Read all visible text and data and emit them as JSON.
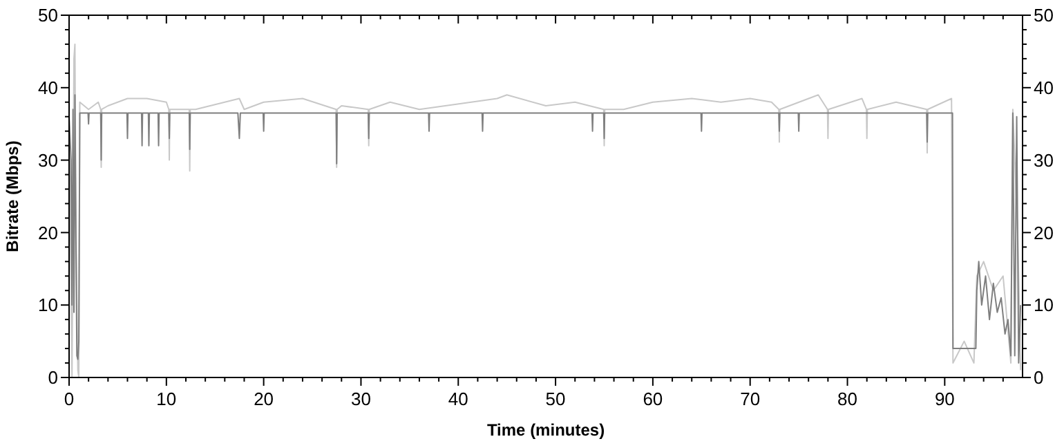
{
  "chart_data": {
    "type": "line",
    "xlabel": "Time (minutes)",
    "ylabel": "Bitrate (Mbps)",
    "xlim": [
      0,
      98
    ],
    "ylim": [
      0,
      50
    ],
    "y2lim": [
      0,
      50
    ],
    "xticks": [
      0,
      {
        "value": 2,
        "label": null
      },
      {
        "value": 4,
        "label": null
      },
      {
        "value": 6,
        "label": null
      },
      {
        "value": 8,
        "label": null
      },
      10,
      {
        "value": 12,
        "label": null
      },
      {
        "value": 14,
        "label": null
      },
      {
        "value": 16,
        "label": null
      },
      {
        "value": 18,
        "label": null
      },
      20,
      {
        "value": 22,
        "label": null
      },
      {
        "value": 24,
        "label": null
      },
      {
        "value": 26,
        "label": null
      },
      {
        "value": 28,
        "label": null
      },
      30,
      {
        "value": 32,
        "label": null
      },
      {
        "value": 34,
        "label": null
      },
      {
        "value": 36,
        "label": null
      },
      {
        "value": 38,
        "label": null
      },
      40,
      {
        "value": 42,
        "label": null
      },
      {
        "value": 44,
        "label": null
      },
      {
        "value": 46,
        "label": null
      },
      {
        "value": 48,
        "label": null
      },
      50,
      {
        "value": 52,
        "label": null
      },
      {
        "value": 54,
        "label": null
      },
      {
        "value": 56,
        "label": null
      },
      {
        "value": 58,
        "label": null
      },
      60,
      {
        "value": 62,
        "label": null
      },
      {
        "value": 64,
        "label": null
      },
      {
        "value": 66,
        "label": null
      },
      {
        "value": 68,
        "label": null
      },
      70,
      {
        "value": 72,
        "label": null
      },
      {
        "value": 74,
        "label": null
      },
      {
        "value": 76,
        "label": null
      },
      {
        "value": 78,
        "label": null
      },
      80,
      {
        "value": 82,
        "label": null
      },
      {
        "value": 84,
        "label": null
      },
      {
        "value": 86,
        "label": null
      },
      {
        "value": 88,
        "label": null
      },
      90,
      {
        "value": 92,
        "label": null
      },
      {
        "value": 94,
        "label": null
      },
      {
        "value": 96,
        "label": null
      }
    ],
    "yticks": [
      0,
      {
        "value": 2,
        "label": null
      },
      {
        "value": 4,
        "label": null
      },
      {
        "value": 6,
        "label": null
      },
      {
        "value": 8,
        "label": null
      },
      10,
      {
        "value": 12,
        "label": null
      },
      {
        "value": 14,
        "label": null
      },
      {
        "value": 16,
        "label": null
      },
      {
        "value": 18,
        "label": null
      },
      20,
      {
        "value": 22,
        "label": null
      },
      {
        "value": 24,
        "label": null
      },
      {
        "value": 26,
        "label": null
      },
      {
        "value": 28,
        "label": null
      },
      30,
      {
        "value": 32,
        "label": null
      },
      {
        "value": 34,
        "label": null
      },
      {
        "value": 36,
        "label": null
      },
      {
        "value": 38,
        "label": null
      },
      40,
      {
        "value": 42,
        "label": null
      },
      {
        "value": 44,
        "label": null
      },
      {
        "value": 46,
        "label": null
      },
      {
        "value": 48,
        "label": null
      },
      50
    ],
    "y2ticks": [
      0,
      {
        "value": 2,
        "label": null
      },
      {
        "value": 4,
        "label": null
      },
      {
        "value": 6,
        "label": null
      },
      {
        "value": 8,
        "label": null
      },
      10,
      {
        "value": 12,
        "label": null
      },
      {
        "value": 14,
        "label": null
      },
      {
        "value": 16,
        "label": null
      },
      {
        "value": 18,
        "label": null
      },
      20,
      {
        "value": 22,
        "label": null
      },
      {
        "value": 24,
        "label": null
      },
      {
        "value": 26,
        "label": null
      },
      {
        "value": 28,
        "label": null
      },
      30,
      {
        "value": 32,
        "label": null
      },
      {
        "value": 34,
        "label": null
      },
      {
        "value": 36,
        "label": null
      },
      {
        "value": 38,
        "label": null
      },
      40,
      {
        "value": 42,
        "label": null
      },
      {
        "value": 44,
        "label": null
      },
      {
        "value": 46,
        "label": null
      },
      {
        "value": 48,
        "label": null
      },
      50
    ],
    "grid": false,
    "series": [
      {
        "color": "#c8c8c8",
        "x": [
          0,
          0.3,
          0.5,
          0.6,
          0.7,
          0.9,
          1.0,
          1.1,
          2,
          3,
          3.25,
          3.3,
          3.35,
          4,
          6,
          8,
          10,
          10.25,
          10.3,
          10.35,
          12,
          12.35,
          12.4,
          12.45,
          13,
          17.5,
          18,
          20,
          24,
          27.45,
          27.5,
          27.55,
          28,
          30.75,
          30.8,
          30.85,
          33,
          36,
          44,
          45,
          49,
          52,
          54.95,
          55,
          55.05,
          57,
          60,
          64,
          67,
          70,
          72.2,
          72.95,
          73,
          73.05,
          77,
          77.95,
          78,
          78.05,
          81.5,
          81.95,
          82,
          82.05,
          85,
          88.15,
          88.2,
          88.25,
          90.7,
          90.85,
          92,
          93,
          93.3,
          94,
          95,
          96,
          96.8,
          97,
          97.5,
          97.8
        ],
        "values": [
          36,
          0,
          44,
          46,
          20,
          1,
          0,
          38,
          37,
          38,
          37,
          29,
          37,
          37.5,
          38.5,
          38.5,
          38,
          37,
          30,
          37,
          37,
          37,
          28.5,
          37,
          37,
          38.5,
          37,
          38,
          38.5,
          37,
          29,
          37,
          37.5,
          37,
          32,
          37,
          38,
          37,
          38.5,
          39,
          37.5,
          38,
          37,
          32,
          37,
          37,
          38,
          38.5,
          38,
          38.5,
          38,
          37,
          32.5,
          37,
          39,
          37,
          33,
          37,
          38.5,
          37,
          33,
          37,
          38,
          37,
          31,
          37,
          38.5,
          2,
          5,
          2,
          14,
          16,
          12,
          14,
          2,
          37,
          20,
          1
        ]
      },
      {
        "color": "#7f7f7f",
        "x": [
          0,
          0.2,
          0.3,
          0.4,
          0.5,
          0.6,
          0.7,
          0.8,
          0.9,
          1.0,
          1.1,
          1.5,
          1.95,
          2.0,
          2.05,
          3.25,
          3.3,
          3.35,
          5,
          5.95,
          6,
          6.05,
          7.45,
          7.5,
          7.55,
          8.15,
          8.2,
          8.25,
          9.15,
          9.2,
          9.25,
          10.25,
          10.3,
          10.35,
          12.35,
          12.4,
          12.45,
          17.35,
          17.5,
          17.6,
          19.95,
          20,
          20.05,
          27.45,
          27.5,
          27.55,
          30.75,
          30.8,
          30.85,
          36.95,
          37,
          37.05,
          42.45,
          42.5,
          42.55,
          51,
          53.75,
          53.8,
          53.85,
          54.95,
          55,
          55.05,
          64.95,
          65,
          65.05,
          72.95,
          73,
          73.05,
          74.95,
          75,
          75.05,
          88.15,
          88.2,
          88.25,
          90.8,
          90.85,
          93.2,
          93.3,
          93.5,
          93.8,
          94.2,
          94.6,
          95,
          95.4,
          95.8,
          96.2,
          96.5,
          96.8,
          97,
          97.2,
          97.4,
          97.6,
          97.8
        ],
        "values": [
          36,
          30,
          10,
          37,
          9,
          39,
          20,
          3,
          2.5,
          5,
          36.5,
          36.5,
          36.5,
          35,
          36.5,
          36.5,
          30,
          36.5,
          36.5,
          36.5,
          33,
          36.5,
          36.5,
          32,
          36.5,
          36.5,
          32,
          36.5,
          36.5,
          32,
          36.5,
          36.5,
          33,
          36.5,
          36.5,
          31.5,
          36.5,
          36.5,
          33,
          36.5,
          36.5,
          34,
          36.5,
          36.5,
          29.5,
          36.5,
          36.5,
          33,
          36.5,
          36.5,
          34,
          36.5,
          36.5,
          34,
          36.5,
          36.5,
          36.5,
          34,
          36.5,
          36.5,
          33,
          36.5,
          36.5,
          34,
          36.5,
          36.5,
          34,
          36.5,
          36.5,
          34,
          36.5,
          36.5,
          32.5,
          36.5,
          36.5,
          4,
          4,
          12,
          16,
          10,
          14,
          8,
          13,
          9,
          11,
          6,
          8,
          3,
          36.5,
          3,
          36,
          2,
          10
        ]
      }
    ]
  }
}
